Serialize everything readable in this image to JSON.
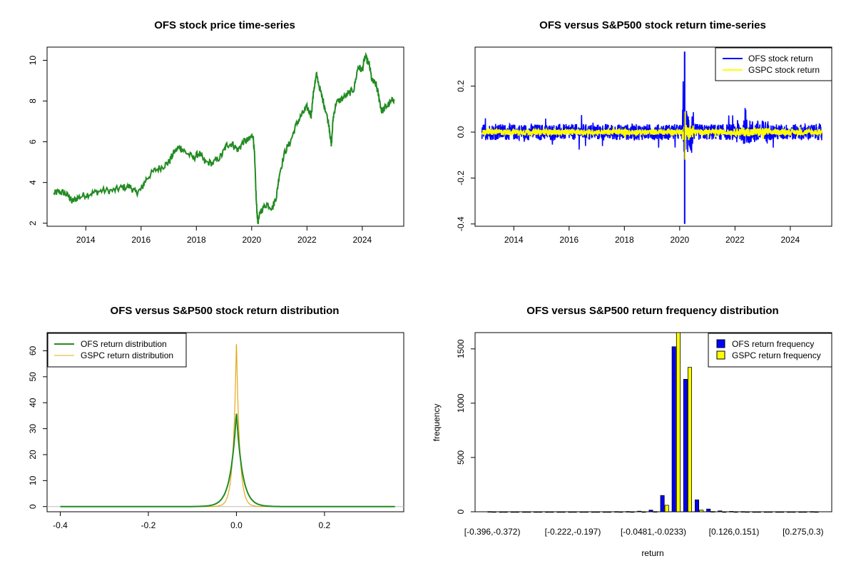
{
  "chart_data": [
    {
      "type": "line",
      "title": "OFS stock price time-series",
      "xlabel": "",
      "ylabel": "",
      "xlim": [
        2012.6,
        2025.5
      ],
      "ylim": [
        1.85,
        10.65
      ],
      "x_ticks": [
        "2014",
        "2016",
        "2018",
        "2020",
        "2022",
        "2024"
      ],
      "y_ticks": [
        "2",
        "4",
        "6",
        "8",
        "10"
      ],
      "grid": false,
      "series": [
        {
          "color": "#228b22",
          "points": [
            [
              2012.85,
              3.45
            ],
            [
              2013.0,
              3.55
            ],
            [
              2013.2,
              3.5
            ],
            [
              2013.4,
              3.3
            ],
            [
              2013.5,
              3.05
            ],
            [
              2013.7,
              3.25
            ],
            [
              2014.0,
              3.4
            ],
            [
              2014.3,
              3.5
            ],
            [
              2014.6,
              3.6
            ],
            [
              2015.0,
              3.6
            ],
            [
              2015.3,
              3.75
            ],
            [
              2015.6,
              3.8
            ],
            [
              2015.8,
              3.5
            ],
            [
              2016.0,
              3.65
            ],
            [
              2016.2,
              4.2
            ],
            [
              2016.5,
              4.6
            ],
            [
              2016.8,
              4.8
            ],
            [
              2017.0,
              5.0
            ],
            [
              2017.2,
              5.5
            ],
            [
              2017.4,
              5.75
            ],
            [
              2017.6,
              5.5
            ],
            [
              2017.9,
              5.2
            ],
            [
              2018.1,
              5.45
            ],
            [
              2018.3,
              5.0
            ],
            [
              2018.6,
              4.95
            ],
            [
              2018.9,
              5.3
            ],
            [
              2019.1,
              5.85
            ],
            [
              2019.3,
              5.9
            ],
            [
              2019.5,
              5.6
            ],
            [
              2019.7,
              6.0
            ],
            [
              2019.9,
              6.1
            ],
            [
              2020.05,
              6.35
            ],
            [
              2020.1,
              5.4
            ],
            [
              2020.17,
              3.0
            ],
            [
              2020.22,
              2.05
            ],
            [
              2020.35,
              2.65
            ],
            [
              2020.55,
              2.95
            ],
            [
              2020.75,
              2.75
            ],
            [
              2020.9,
              3.35
            ],
            [
              2021.0,
              4.4
            ],
            [
              2021.2,
              5.5
            ],
            [
              2021.4,
              6.0
            ],
            [
              2021.6,
              6.8
            ],
            [
              2021.8,
              7.3
            ],
            [
              2022.0,
              7.7
            ],
            [
              2022.15,
              7.3
            ],
            [
              2022.25,
              8.6
            ],
            [
              2022.35,
              9.3
            ],
            [
              2022.5,
              8.4
            ],
            [
              2022.65,
              7.7
            ],
            [
              2022.8,
              6.8
            ],
            [
              2022.88,
              5.8
            ],
            [
              2022.95,
              7.2
            ],
            [
              2023.05,
              7.9
            ],
            [
              2023.25,
              8.1
            ],
            [
              2023.5,
              8.35
            ],
            [
              2023.7,
              8.6
            ],
            [
              2023.85,
              9.7
            ],
            [
              2024.0,
              9.5
            ],
            [
              2024.1,
              10.2
            ],
            [
              2024.25,
              9.8
            ],
            [
              2024.35,
              9.0
            ],
            [
              2024.5,
              8.8
            ],
            [
              2024.6,
              8.2
            ],
            [
              2024.7,
              7.5
            ],
            [
              2024.85,
              7.7
            ],
            [
              2025.0,
              7.9
            ],
            [
              2025.15,
              8.1
            ]
          ]
        }
      ]
    },
    {
      "type": "line",
      "title": "OFS versus S&P500 stock return time-series",
      "xlabel": "",
      "ylabel": "",
      "xlim": [
        2012.6,
        2025.5
      ],
      "ylim": [
        -0.41,
        0.37
      ],
      "x_ticks": [
        "2014",
        "2016",
        "2018",
        "2020",
        "2022",
        "2024"
      ],
      "y_ticks": [
        "-0.4",
        "-0.2",
        "0.0",
        "0.2"
      ],
      "grid": false,
      "legend_position": "top-right",
      "series": [
        {
          "name": "OFS stock return",
          "color": "#0000ff",
          "amplitude": 0.035,
          "covid_spike": [
            -0.4,
            0.35
          ]
        },
        {
          "name": "GSPC stock return",
          "color": "#ffff00",
          "amplitude": 0.012,
          "covid_spike": [
            -0.12,
            0.09
          ]
        }
      ]
    },
    {
      "type": "line",
      "title": "OFS versus S&P500 stock return distribution",
      "xlabel": "",
      "ylabel": "",
      "xlim": [
        -0.43,
        0.38
      ],
      "ylim": [
        -2,
        67
      ],
      "x_ticks": [
        "-0.4",
        "-0.2",
        "0.0",
        "0.2"
      ],
      "y_ticks": [
        "0",
        "10",
        "20",
        "30",
        "40",
        "50",
        "60"
      ],
      "grid": false,
      "legend_position": "top-left",
      "series": [
        {
          "name": "OFS return distribution",
          "color": "#228b22",
          "peak": 36.5,
          "sigma": 0.012,
          "range": [
            -0.4,
            0.36
          ]
        },
        {
          "name": "GSPC return distribution",
          "color": "#e6a817",
          "peak": 64,
          "sigma": 0.0065,
          "range": [
            -0.13,
            0.09
          ]
        }
      ]
    },
    {
      "type": "bar",
      "title": "OFS versus S&P500 return frequency distribution",
      "xlabel": "return",
      "ylabel": "frequency",
      "ylim": [
        0,
        1650
      ],
      "y_ticks": [
        "0",
        "500",
        "1000",
        "1500"
      ],
      "x_tick_labels": [
        "[-0.396,-0.372)",
        "[-0.222,-0.197)",
        "[-0.0481,-0.0233)",
        "[0.126,0.151)",
        "[0.275,0.3)"
      ],
      "x_tick_indices": [
        0,
        7,
        14,
        21,
        27
      ],
      "legend_position": "top-right",
      "categories": 29,
      "series": [
        {
          "name": "OFS return frequency",
          "color": "#0000ff",
          "values": [
            1,
            0,
            0,
            0,
            0,
            0,
            0,
            0,
            0,
            0,
            0,
            1,
            2,
            5,
            15,
            150,
            1520,
            1220,
            110,
            25,
            8,
            3,
            1,
            0,
            0,
            0,
            0,
            0,
            1
          ]
        },
        {
          "name": "GSPC return frequency",
          "color": "#ffff00",
          "values": [
            0,
            0,
            0,
            0,
            0,
            0,
            0,
            0,
            0,
            0,
            0,
            0,
            0,
            0,
            1,
            60,
            1700,
            1330,
            15,
            2,
            0,
            0,
            0,
            0,
            0,
            0,
            0,
            0,
            0
          ]
        }
      ]
    }
  ]
}
